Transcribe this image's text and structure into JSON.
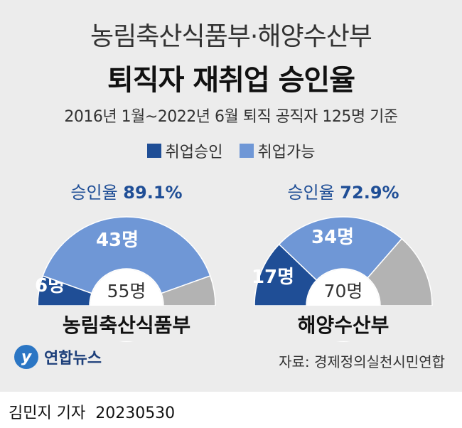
{
  "title_line1": "농림축산식품부·해양수산부",
  "title_line2": "퇴직자 재취업 승인율",
  "subtitle": "2016년 1월~2022년 6월 퇴직 공직자 125명 기준",
  "colors": {
    "approved": "#1f4e96",
    "possible": "#6f97d6",
    "remainder": "#b3b3b3",
    "rate_value": "#1f4e96"
  },
  "chart_data": {
    "type": "pie",
    "legend": [
      "취업승인",
      "취업가능"
    ],
    "charts": [
      {
        "name": "농림축산식품부",
        "rate_label": "승인율",
        "rate_value": "89.1%",
        "total": 55,
        "total_label": "55명",
        "segments": [
          {
            "label": "6명",
            "value": 6,
            "category": "취업승인"
          },
          {
            "label": "43명",
            "value": 43,
            "category": "취업가능"
          },
          {
            "label": "",
            "value": 6,
            "category": ""
          }
        ]
      },
      {
        "name": "해양수산부",
        "rate_label": "승인율",
        "rate_value": "72.9%",
        "total": 70,
        "total_label": "70명",
        "segments": [
          {
            "label": "17명",
            "value": 17,
            "category": "취업승인"
          },
          {
            "label": "34명",
            "value": 34,
            "category": "취업가능"
          },
          {
            "label": "",
            "value": 19,
            "category": ""
          }
        ]
      }
    ]
  },
  "logo_text": "연합뉴스",
  "source": "자료: 경제정의실천시민연합",
  "byline": {
    "reporter": "김민지 기자",
    "date": "20230530"
  }
}
